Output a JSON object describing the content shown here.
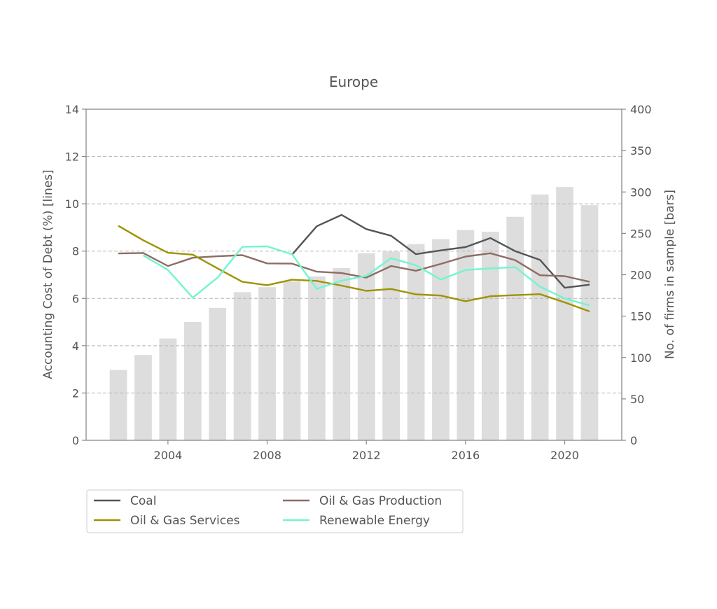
{
  "chart_data": {
    "type": "line",
    "title": "Europe",
    "ylabel": "Accounting Cost of Debt (%)  [lines]",
    "ylabel_right": "No. of firms in sample [bars]",
    "xlabel": "",
    "xlim": [
      2000.7,
      2022.3
    ],
    "ylim": [
      0,
      14
    ],
    "ylim_right": [
      0,
      400
    ],
    "x_ticks": [
      2004,
      2008,
      2012,
      2016,
      2020
    ],
    "y_ticks": [
      0,
      2,
      4,
      6,
      8,
      10,
      12,
      14
    ],
    "y_ticks_right": [
      0,
      50,
      100,
      150,
      200,
      250,
      300,
      350,
      400
    ],
    "grid": "horizontal dashed",
    "legend_placement": "below",
    "colors": {
      "axis": "#888888",
      "grid": "#b5b5b5",
      "bars": "#dddddd",
      "text": "#555555"
    },
    "bars": {
      "x": [
        2002,
        2003,
        2004,
        2005,
        2006,
        2007,
        2008,
        2009,
        2010,
        2011,
        2012,
        2013,
        2014,
        2015,
        2016,
        2017,
        2018,
        2019,
        2020,
        2021
      ],
      "values": [
        85,
        103,
        123,
        143,
        160,
        179,
        185,
        192,
        198,
        208,
        226,
        228,
        237,
        243,
        254,
        252,
        270,
        297,
        306,
        284
      ]
    },
    "series": [
      {
        "name": "Coal",
        "color": "#555555",
        "x": [
          2009,
          2010,
          2011,
          2012,
          2013,
          2014,
          2015,
          2016,
          2017,
          2018,
          2019,
          2020,
          2021
        ],
        "values": [
          7.85,
          9.05,
          9.53,
          8.93,
          8.65,
          7.87,
          8.03,
          8.17,
          8.55,
          8.0,
          7.63,
          6.45,
          6.58
        ]
      },
      {
        "name": "Oil & Gas Production",
        "color": "#8c6d63",
        "x": [
          2002,
          2003,
          2004,
          2005,
          2006,
          2007,
          2008,
          2009,
          2010,
          2011,
          2012,
          2013,
          2014,
          2015,
          2016,
          2017,
          2018,
          2019,
          2020,
          2021
        ],
        "values": [
          7.9,
          7.92,
          7.37,
          7.72,
          7.78,
          7.83,
          7.48,
          7.47,
          7.13,
          7.07,
          6.88,
          7.37,
          7.17,
          7.46,
          7.77,
          7.91,
          7.62,
          6.98,
          6.94,
          6.7
        ]
      },
      {
        "name": "Oil & Gas Services",
        "color": "#9c9400",
        "x": [
          2002,
          2003,
          2004,
          2005,
          2006,
          2007,
          2008,
          2009,
          2010,
          2011,
          2012,
          2013,
          2014,
          2015,
          2016,
          2017,
          2018,
          2019,
          2020,
          2021
        ],
        "values": [
          9.07,
          8.46,
          7.93,
          7.85,
          7.27,
          6.7,
          6.56,
          6.79,
          6.74,
          6.54,
          6.32,
          6.4,
          6.17,
          6.12,
          5.88,
          6.09,
          6.14,
          6.18,
          5.83,
          5.45
        ]
      },
      {
        "name": "Renewable Energy",
        "color": "#72f5cf",
        "x": [
          2003,
          2004,
          2005,
          2006,
          2007,
          2008,
          2009,
          2010,
          2011,
          2012,
          2013,
          2014,
          2015,
          2016,
          2017,
          2018,
          2019,
          2020,
          2021
        ],
        "values": [
          7.82,
          7.2,
          6.03,
          6.88,
          8.18,
          8.2,
          7.87,
          6.4,
          6.75,
          6.95,
          7.7,
          7.4,
          6.8,
          7.2,
          7.27,
          7.32,
          6.5,
          6.0,
          5.7
        ]
      }
    ]
  }
}
